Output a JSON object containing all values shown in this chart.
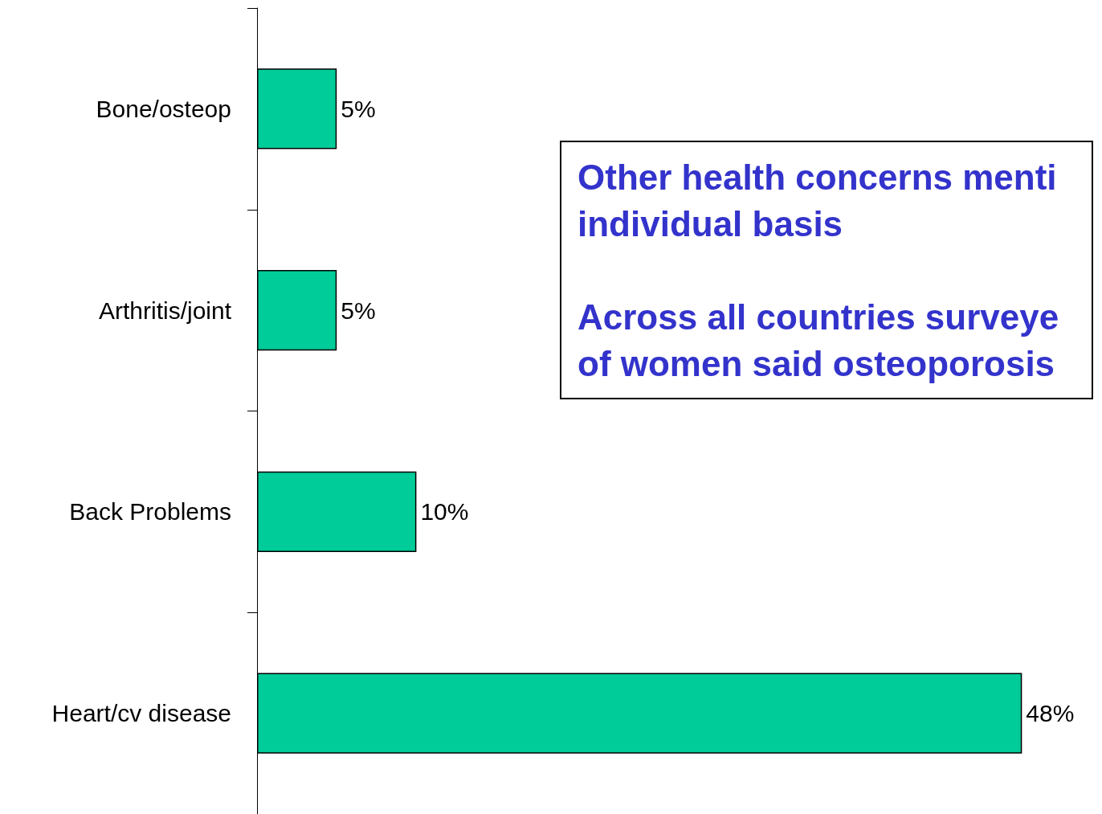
{
  "chart_data": {
    "type": "bar",
    "orientation": "horizontal",
    "categories": [
      "Bone/osteop",
      "Arthritis/joint",
      "Back Problems",
      "Heart/cv disease"
    ],
    "values": [
      5,
      5,
      10,
      48
    ],
    "value_labels": [
      "5%",
      "5%",
      "10%",
      "48%"
    ],
    "color": "#00cc99",
    "tick_labels": "y",
    "annotations": [
      "Other health concerns menti individual basis",
      "Across all countries surveye of women said osteoporosis"
    ]
  }
}
